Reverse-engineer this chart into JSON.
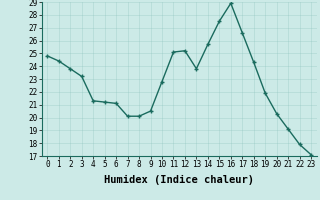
{
  "x": [
    0,
    1,
    2,
    3,
    4,
    5,
    6,
    7,
    8,
    9,
    10,
    11,
    12,
    13,
    14,
    15,
    16,
    17,
    18,
    19,
    20,
    21,
    22,
    23
  ],
  "y": [
    24.8,
    24.4,
    23.8,
    23.2,
    21.3,
    21.2,
    21.1,
    20.1,
    20.1,
    20.5,
    22.8,
    25.1,
    25.2,
    23.8,
    25.7,
    27.5,
    28.9,
    26.6,
    24.3,
    21.9,
    20.3,
    19.1,
    17.9,
    17.1
  ],
  "xlabel": "Humidex (Indice chaleur)",
  "ylim": [
    17,
    29
  ],
  "xlim": [
    -0.5,
    23.5
  ],
  "yticks": [
    17,
    18,
    19,
    20,
    21,
    22,
    23,
    24,
    25,
    26,
    27,
    28,
    29
  ],
  "xticks": [
    0,
    1,
    2,
    3,
    4,
    5,
    6,
    7,
    8,
    9,
    10,
    11,
    12,
    13,
    14,
    15,
    16,
    17,
    18,
    19,
    20,
    21,
    22,
    23
  ],
  "line_color": "#1a6b5e",
  "marker_color": "#1a6b5e",
  "bg_color": "#cceae7",
  "grid_color": "#b0d8d4",
  "tick_label_fontsize": 5.5,
  "xlabel_fontsize": 7.5
}
